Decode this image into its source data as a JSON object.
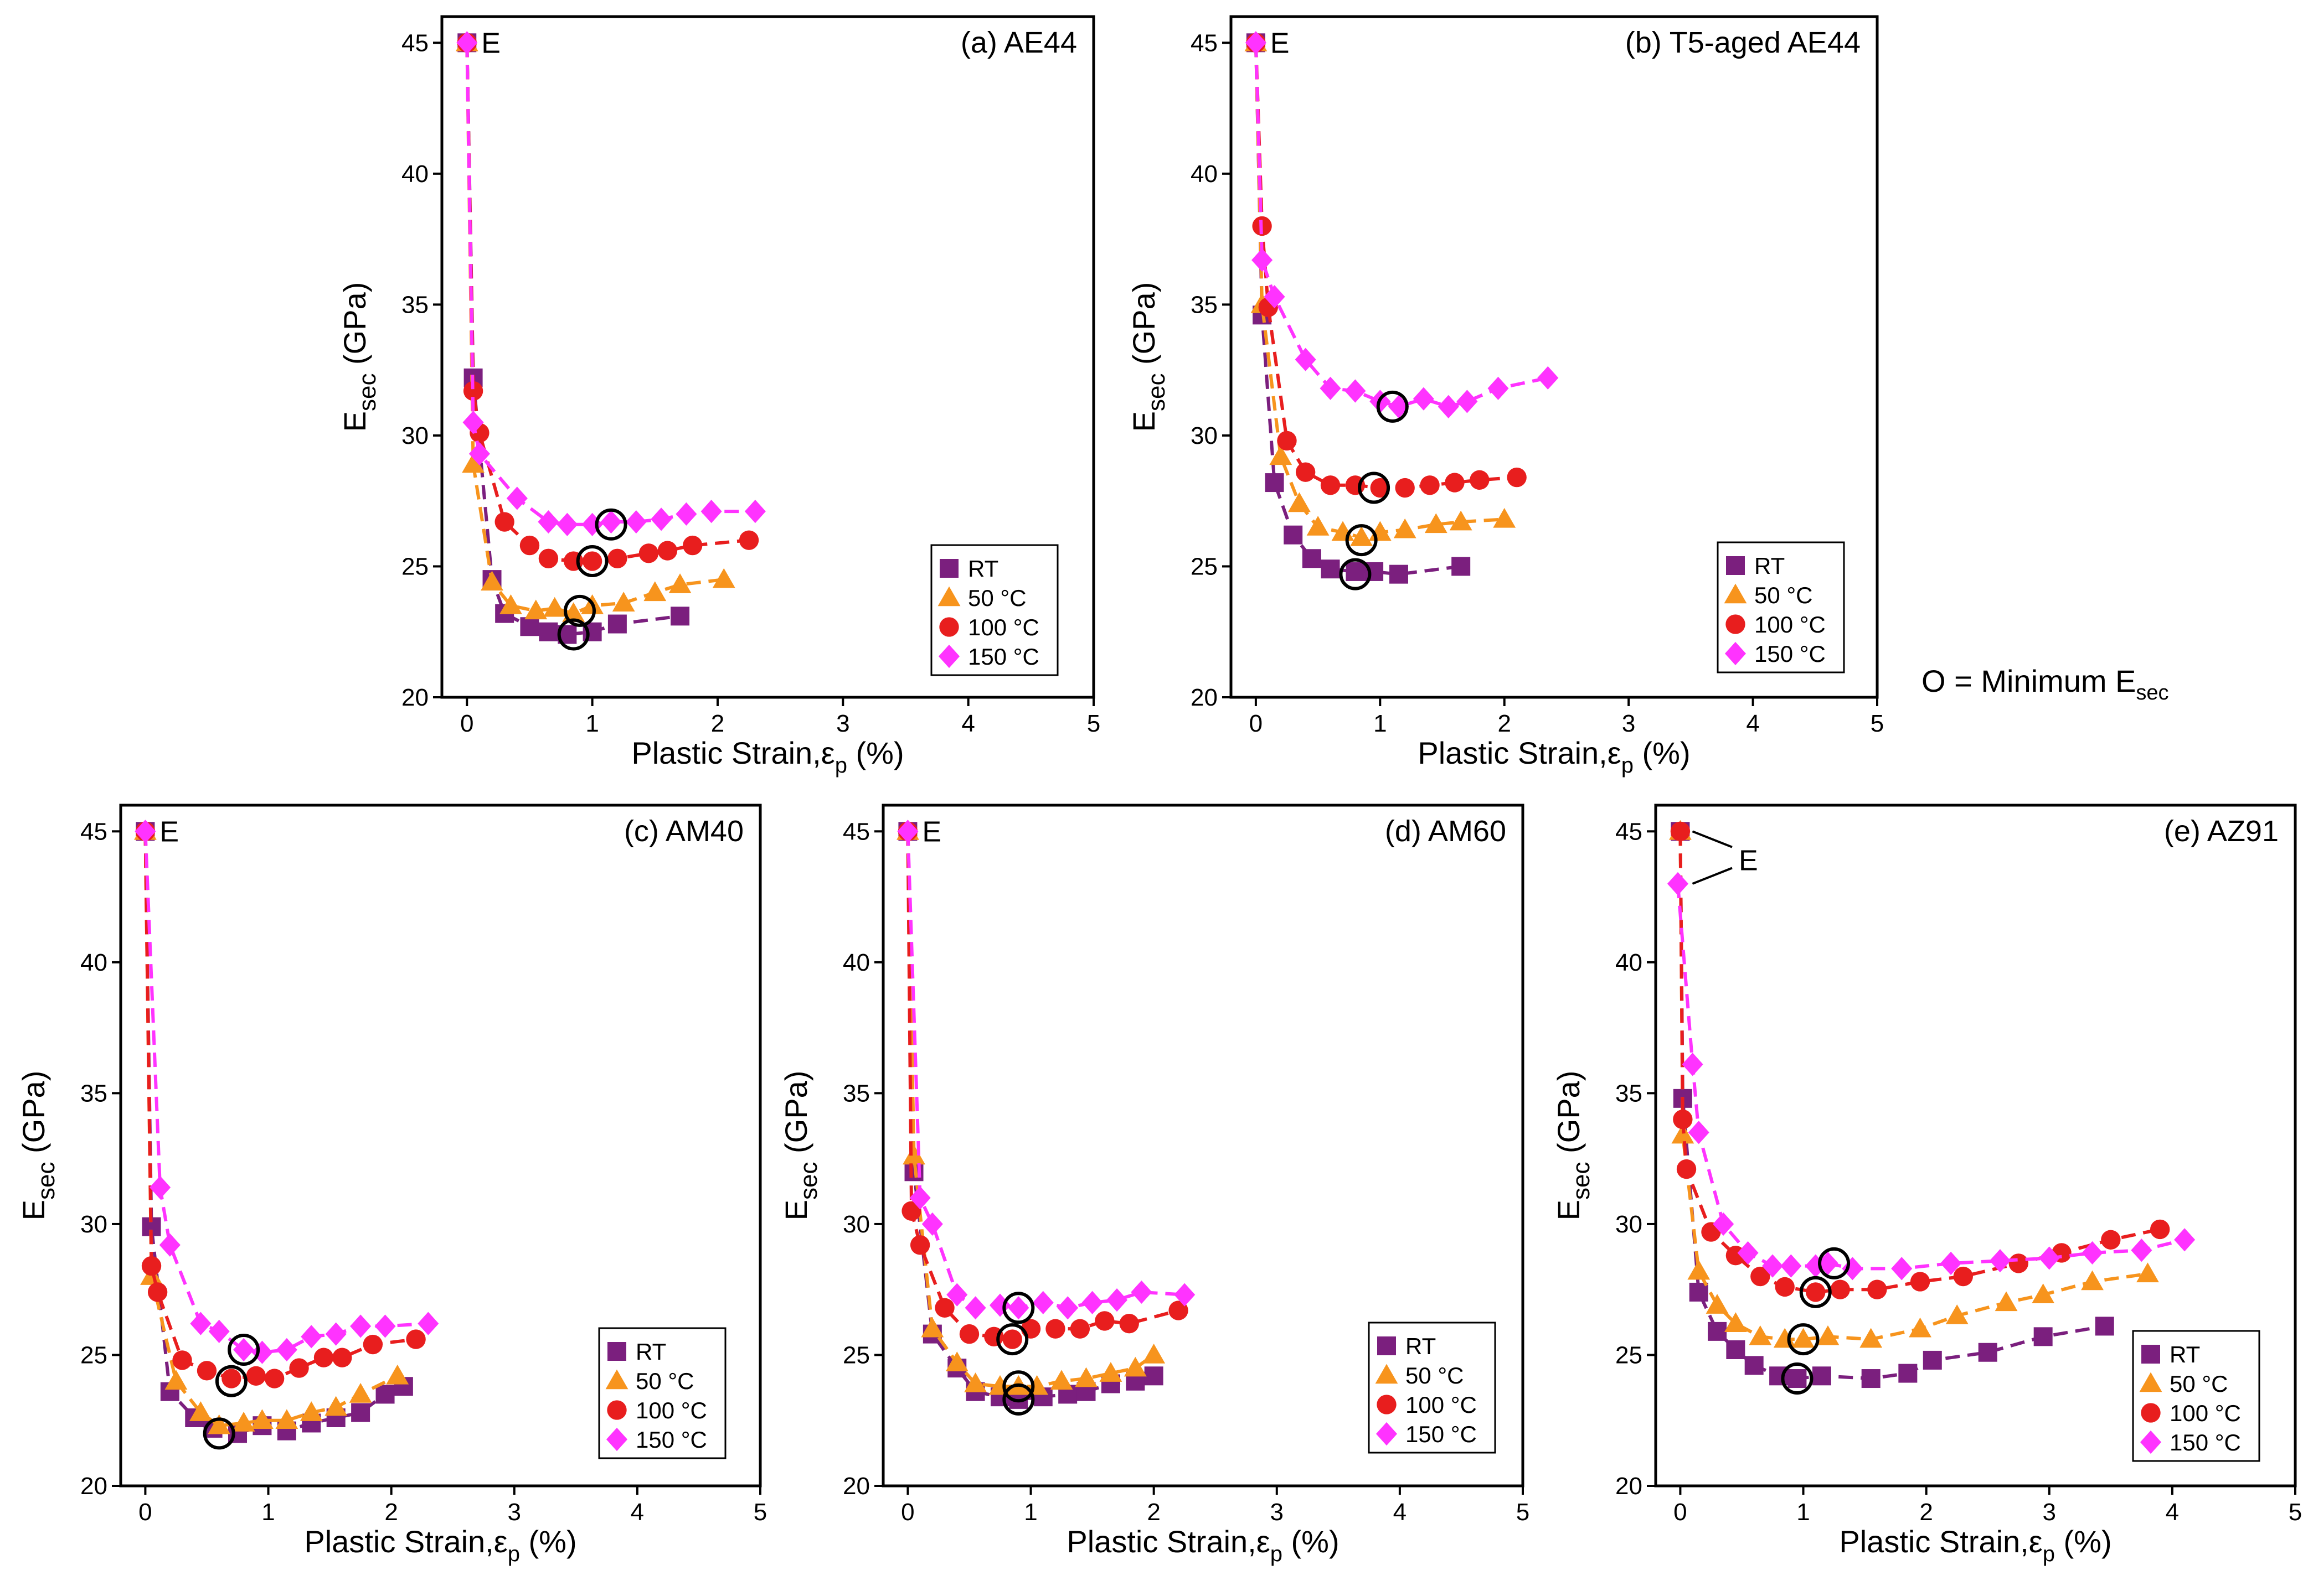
{
  "note": {
    "prefix": "O = Minimum E",
    "sub": "sec"
  },
  "marker_colors": {
    "RT": "#7B1F7E",
    "50 °C": "#F7941D",
    "100 °C": "#E81E1E",
    "150 °C": "#FF33FF"
  },
  "chart_data": [
    {
      "type": "scatter",
      "title": "(a)  AE44",
      "xlabel": "Plastic Strain,ε",
      "xlabel_sub": "p",
      "xlabel_suffix": " (%)",
      "ylabel": "E",
      "ylabel_sub": "sec",
      "ylabel_suffix": " (GPa)",
      "xlim": [
        -0.2,
        5
      ],
      "ylim": [
        20,
        46
      ],
      "xticks": [
        0,
        1,
        2,
        3,
        4,
        5
      ],
      "yticks": [
        20,
        25,
        30,
        35,
        40,
        45
      ],
      "elastic_label": "E",
      "legend": [
        "RT",
        "50 °C",
        "100 °C",
        "150 °C"
      ],
      "series": [
        {
          "name": "RT",
          "x": [
            0,
            0.05,
            0.2,
            0.3,
            0.5,
            0.65,
            0.8,
            1.0,
            1.2,
            1.7
          ],
          "y": [
            45,
            32.2,
            24.5,
            23.2,
            22.7,
            22.5,
            22.4,
            22.5,
            22.8,
            23.1
          ]
        },
        {
          "name": "50 °C",
          "x": [
            0,
            0.05,
            0.2,
            0.35,
            0.55,
            0.7,
            0.85,
            1.0,
            1.25,
            1.5,
            1.7,
            2.05
          ],
          "y": [
            45,
            28.9,
            24.4,
            23.5,
            23.3,
            23.4,
            23.2,
            23.5,
            23.6,
            24.0,
            24.3,
            24.5
          ]
        },
        {
          "name": "100 °C",
          "x": [
            0,
            0.05,
            0.1,
            0.3,
            0.5,
            0.65,
            0.85,
            1.0,
            1.2,
            1.45,
            1.6,
            1.8,
            2.25
          ],
          "y": [
            45,
            31.7,
            30.1,
            26.7,
            25.8,
            25.3,
            25.2,
            25.2,
            25.3,
            25.5,
            25.6,
            25.8,
            26.0
          ]
        },
        {
          "name": "150 °C",
          "x": [
            0,
            0.05,
            0.1,
            0.4,
            0.65,
            0.8,
            1.0,
            1.15,
            1.35,
            1.55,
            1.75,
            1.95,
            2.3
          ],
          "y": [
            45,
            30.5,
            29.3,
            27.6,
            26.7,
            26.6,
            26.6,
            26.7,
            26.7,
            26.8,
            27.0,
            27.1,
            27.1
          ]
        }
      ],
      "minimum_markers": [
        {
          "x": 0.85,
          "y": 22.4
        },
        {
          "x": 0.9,
          "y": 23.3
        },
        {
          "x": 1.0,
          "y": 25.2
        },
        {
          "x": 1.15,
          "y": 26.6
        }
      ]
    },
    {
      "type": "scatter",
      "title": "(b) T5-aged AE44",
      "xlabel": "Plastic Strain,ε",
      "xlabel_sub": "p",
      "xlabel_suffix": " (%)",
      "ylabel": "E",
      "ylabel_sub": "sec",
      "ylabel_suffix": " (GPa)",
      "xlim": [
        -0.2,
        5
      ],
      "ylim": [
        20,
        46
      ],
      "xticks": [
        0,
        1,
        2,
        3,
        4,
        5
      ],
      "yticks": [
        20,
        25,
        30,
        35,
        40,
        45
      ],
      "elastic_label": "E",
      "legend": [
        "RT",
        "50 °C",
        "100 °C",
        "150 °C"
      ],
      "series": [
        {
          "name": "RT",
          "x": [
            0,
            0.05,
            0.15,
            0.3,
            0.45,
            0.6,
            0.8,
            0.95,
            1.15,
            1.65
          ],
          "y": [
            45,
            34.6,
            28.2,
            26.2,
            25.3,
            24.9,
            24.8,
            24.8,
            24.7,
            25.0
          ]
        },
        {
          "name": "50 °C",
          "x": [
            0,
            0.05,
            0.2,
            0.35,
            0.5,
            0.7,
            0.85,
            1.0,
            1.2,
            1.45,
            1.65,
            2.0
          ],
          "y": [
            45,
            35.0,
            29.2,
            27.4,
            26.5,
            26.3,
            26.1,
            26.3,
            26.4,
            26.6,
            26.7,
            26.8
          ]
        },
        {
          "name": "100 °C",
          "x": [
            0,
            0.05,
            0.1,
            0.25,
            0.4,
            0.6,
            0.8,
            1.0,
            1.2,
            1.4,
            1.6,
            1.8,
            2.1
          ],
          "y": [
            45,
            38.0,
            34.9,
            29.8,
            28.6,
            28.1,
            28.1,
            28.0,
            28.0,
            28.1,
            28.2,
            28.3,
            28.4
          ]
        },
        {
          "name": "150 °C",
          "x": [
            0,
            0.05,
            0.15,
            0.4,
            0.6,
            0.8,
            1.0,
            1.15,
            1.35,
            1.55,
            1.7,
            1.95,
            2.35
          ],
          "y": [
            45,
            36.7,
            35.3,
            32.9,
            31.8,
            31.7,
            31.3,
            31.1,
            31.4,
            31.1,
            31.3,
            31.8,
            32.2
          ]
        }
      ],
      "minimum_markers": [
        {
          "x": 0.8,
          "y": 24.7
        },
        {
          "x": 0.85,
          "y": 26.0
        },
        {
          "x": 0.95,
          "y": 28.0
        },
        {
          "x": 1.1,
          "y": 31.1
        }
      ]
    },
    {
      "type": "scatter",
      "title": "(c)  AM40",
      "xlabel": "Plastic Strain,ε",
      "xlabel_sub": "p",
      "xlabel_suffix": " (%)",
      "ylabel": "E",
      "ylabel_sub": "sec",
      "ylabel_suffix": " (GPa)",
      "xlim": [
        -0.2,
        5
      ],
      "ylim": [
        20,
        46
      ],
      "xticks": [
        0,
        1,
        2,
        3,
        4,
        5
      ],
      "yticks": [
        20,
        25,
        30,
        35,
        40,
        45
      ],
      "elastic_label": "E",
      "legend": [
        "RT",
        "50 °C",
        "100 °C",
        "150 °C"
      ],
      "series": [
        {
          "name": "RT",
          "x": [
            0,
            0.05,
            0.2,
            0.4,
            0.55,
            0.75,
            0.95,
            1.15,
            1.35,
            1.55,
            1.75,
            1.95,
            2.1
          ],
          "y": [
            45,
            29.9,
            23.6,
            22.6,
            22.2,
            22.0,
            22.3,
            22.1,
            22.4,
            22.6,
            22.8,
            23.5,
            23.8
          ]
        },
        {
          "name": "50 °C",
          "x": [
            0,
            0.05,
            0.25,
            0.45,
            0.6,
            0.8,
            0.95,
            1.15,
            1.35,
            1.55,
            1.75,
            2.05
          ],
          "y": [
            45,
            28.0,
            24.0,
            22.8,
            22.3,
            22.4,
            22.5,
            22.5,
            22.8,
            23.0,
            23.5,
            24.2
          ]
        },
        {
          "name": "100 °C",
          "x": [
            0,
            0.05,
            0.1,
            0.3,
            0.5,
            0.7,
            0.9,
            1.05,
            1.25,
            1.45,
            1.6,
            1.85,
            2.2
          ],
          "y": [
            45,
            28.4,
            27.4,
            24.8,
            24.4,
            24.1,
            24.2,
            24.1,
            24.5,
            24.9,
            24.9,
            25.4,
            25.6
          ]
        },
        {
          "name": "150 °C",
          "x": [
            0,
            0.12,
            0.2,
            0.45,
            0.6,
            0.8,
            0.95,
            1.15,
            1.35,
            1.55,
            1.75,
            1.95,
            2.3
          ],
          "y": [
            45,
            31.4,
            29.2,
            26.2,
            25.9,
            25.2,
            25.1,
            25.2,
            25.7,
            25.8,
            26.1,
            26.1,
            26.2
          ]
        }
      ],
      "minimum_markers": [
        {
          "x": 0.6,
          "y": 22.0
        },
        {
          "x": 0.7,
          "y": 24.0
        },
        {
          "x": 0.8,
          "y": 25.2
        }
      ]
    },
    {
      "type": "scatter",
      "title": "(d)  AM60",
      "xlabel": "Plastic Strain,ε",
      "xlabel_sub": "p",
      "xlabel_suffix": " (%)",
      "ylabel": "E",
      "ylabel_sub": "sec",
      "ylabel_suffix": " (GPa)",
      "xlim": [
        -0.2,
        5
      ],
      "ylim": [
        20,
        46
      ],
      "xticks": [
        0,
        1,
        2,
        3,
        4,
        5
      ],
      "yticks": [
        20,
        25,
        30,
        35,
        40,
        45
      ],
      "elastic_label": "E",
      "legend": [
        "RT",
        "50 °C",
        "100 °C",
        "150 °C"
      ],
      "series": [
        {
          "name": "RT",
          "x": [
            0,
            0.05,
            0.2,
            0.4,
            0.55,
            0.75,
            0.9,
            1.1,
            1.3,
            1.45,
            1.65,
            1.85,
            2.0
          ],
          "y": [
            45,
            32.0,
            25.8,
            24.5,
            23.6,
            23.4,
            23.3,
            23.4,
            23.5,
            23.6,
            23.9,
            24.0,
            24.2
          ]
        },
        {
          "name": "50 °C",
          "x": [
            0,
            0.05,
            0.2,
            0.4,
            0.55,
            0.75,
            0.9,
            1.05,
            1.25,
            1.45,
            1.65,
            1.85,
            2.0
          ],
          "y": [
            45,
            32.6,
            26.0,
            24.7,
            23.9,
            23.8,
            23.8,
            23.8,
            24.0,
            24.1,
            24.3,
            24.5,
            25.0
          ]
        },
        {
          "name": "100 °C",
          "x": [
            0,
            0.03,
            0.1,
            0.3,
            0.5,
            0.7,
            0.85,
            1.0,
            1.2,
            1.4,
            1.6,
            1.8,
            2.2
          ],
          "y": [
            45,
            30.5,
            29.2,
            26.8,
            25.8,
            25.7,
            25.6,
            26.0,
            26.0,
            26.0,
            26.3,
            26.2,
            26.7
          ]
        },
        {
          "name": "150 °C",
          "x": [
            0,
            0.1,
            0.2,
            0.4,
            0.55,
            0.75,
            0.9,
            1.1,
            1.3,
            1.5,
            1.7,
            1.9,
            2.25
          ],
          "y": [
            45,
            31.0,
            30.0,
            27.3,
            26.8,
            26.9,
            26.8,
            27.0,
            26.8,
            27.0,
            27.1,
            27.4,
            27.3
          ]
        }
      ],
      "minimum_markers": [
        {
          "x": 0.9,
          "y": 23.3
        },
        {
          "x": 0.9,
          "y": 23.8
        },
        {
          "x": 0.85,
          "y": 25.6
        },
        {
          "x": 0.9,
          "y": 26.8
        }
      ]
    },
    {
      "type": "scatter",
      "title": "(e)  AZ91",
      "xlabel": "Plastic Strain,ε",
      "xlabel_sub": "p",
      "xlabel_suffix": " (%)",
      "ylabel": "E",
      "ylabel_sub": "sec",
      "ylabel_suffix": " (GPa)",
      "xlim": [
        -0.2,
        5
      ],
      "ylim": [
        20,
        46
      ],
      "xticks": [
        0,
        1,
        2,
        3,
        4,
        5
      ],
      "yticks": [
        20,
        25,
        30,
        35,
        40,
        45
      ],
      "elastic_label": "E",
      "legend": [
        "RT",
        "50 °C",
        "100 °C",
        "150 °C"
      ],
      "series": [
        {
          "name": "RT",
          "x": [
            0,
            0.02,
            0.15,
            0.3,
            0.45,
            0.6,
            0.8,
            0.95,
            1.15,
            1.55,
            1.85,
            2.05,
            2.5,
            2.95,
            3.45
          ],
          "y": [
            45,
            34.8,
            27.4,
            25.9,
            25.2,
            24.6,
            24.2,
            24.1,
            24.2,
            24.1,
            24.3,
            24.8,
            25.1,
            25.7,
            26.1
          ]
        },
        {
          "name": "50 °C",
          "x": [
            0,
            0.02,
            0.15,
            0.3,
            0.45,
            0.65,
            0.85,
            1.0,
            1.2,
            1.55,
            1.95,
            2.25,
            2.65,
            2.95,
            3.35,
            3.8
          ],
          "y": [
            45,
            33.4,
            28.2,
            26.9,
            26.2,
            25.7,
            25.6,
            25.6,
            25.7,
            25.6,
            26.0,
            26.5,
            27.0,
            27.3,
            27.8,
            28.1
          ]
        },
        {
          "name": "100 °C",
          "x": [
            0,
            0.02,
            0.05,
            0.25,
            0.45,
            0.65,
            0.85,
            1.1,
            1.3,
            1.6,
            1.95,
            2.3,
            2.75,
            3.1,
            3.5,
            3.9
          ],
          "y": [
            45,
            34.0,
            32.1,
            29.7,
            28.8,
            28.0,
            27.6,
            27.4,
            27.5,
            27.5,
            27.8,
            28.0,
            28.5,
            28.9,
            29.4,
            29.8
          ]
        },
        {
          "name": "150 °C",
          "x": [
            -0.02,
            0.1,
            0.15,
            0.35,
            0.55,
            0.75,
            0.9,
            1.1,
            1.2,
            1.4,
            1.8,
            2.2,
            2.6,
            3.0,
            3.35,
            3.75,
            4.1
          ],
          "y": [
            43.0,
            36.1,
            33.5,
            30.0,
            28.9,
            28.4,
            28.4,
            28.4,
            28.5,
            28.3,
            28.3,
            28.5,
            28.6,
            28.7,
            28.9,
            29.0,
            29.4
          ]
        }
      ],
      "minimum_markers": [
        {
          "x": 0.95,
          "y": 24.1
        },
        {
          "x": 1.0,
          "y": 25.6
        },
        {
          "x": 1.1,
          "y": 27.4
        },
        {
          "x": 1.25,
          "y": 28.5
        }
      ]
    }
  ]
}
